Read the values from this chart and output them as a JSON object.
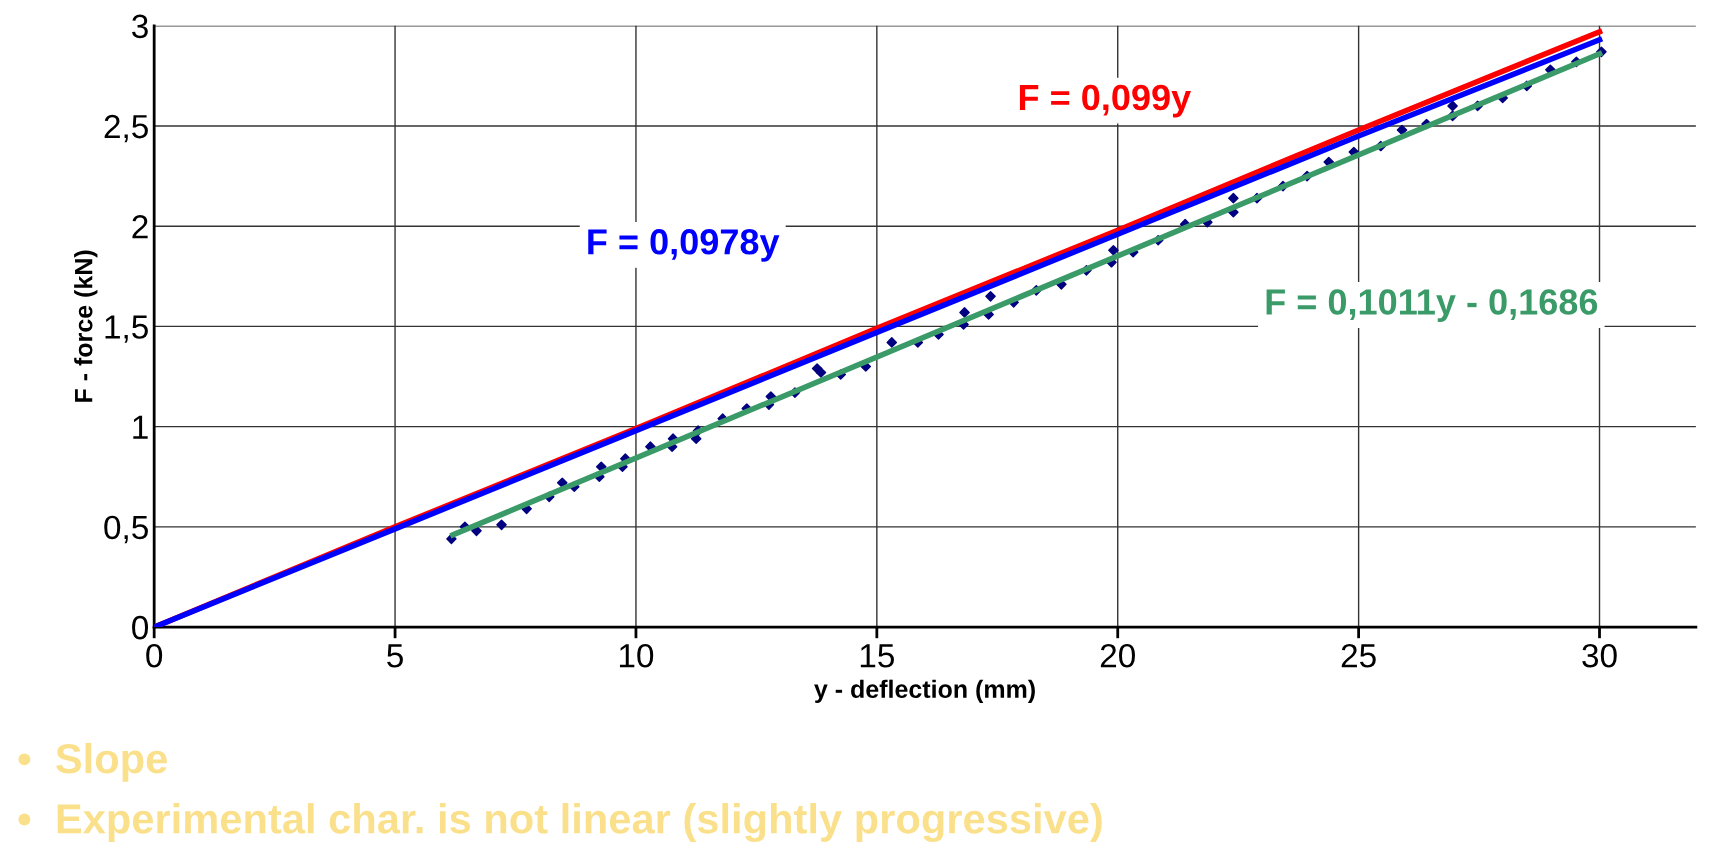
{
  "chart_data": {
    "type": "line",
    "xlabel": "y - deflection (mm)",
    "ylabel": "F - force (kN)",
    "xlim": [
      0,
      32
    ],
    "ylim": [
      0,
      3
    ],
    "xticks": [
      0,
      5,
      10,
      15,
      20,
      25,
      30
    ],
    "yticks": [
      {
        "value": 0,
        "label": "0"
      },
      {
        "value": 0.5,
        "label": "0,5"
      },
      {
        "value": 1,
        "label": "1"
      },
      {
        "value": 1.5,
        "label": "1,5"
      },
      {
        "value": 2,
        "label": "2"
      },
      {
        "value": 2.5,
        "label": "2,5"
      },
      {
        "value": 3,
        "label": "3"
      }
    ],
    "grid": true,
    "legend": false,
    "series": [
      {
        "name": "F = 0,099y",
        "color": "#ff0000",
        "x": [
          0,
          5,
          10,
          15,
          20,
          25,
          30
        ],
        "values": [
          0,
          0.5,
          0.99,
          1.49,
          1.98,
          2.48,
          2.97
        ]
      },
      {
        "name": "F = 0,0978y",
        "color": "#0000ff",
        "x": [
          0,
          5,
          10,
          15,
          20,
          25,
          30
        ],
        "values": [
          0,
          0.49,
          0.98,
          1.47,
          1.96,
          2.45,
          2.93
        ]
      },
      {
        "type": "scatter",
        "marker": "diamond",
        "color": "#000080",
        "x": [
          6.17,
          6.45,
          6.69,
          7.21,
          7.73,
          8.2,
          8.47,
          8.72,
          9.24,
          9.28,
          9.72,
          9.78,
          10.3,
          10.75,
          10.77,
          11.25,
          11.29,
          11.8,
          12.3,
          12.76,
          12.8,
          13.3,
          13.76,
          13.84,
          14.25,
          14.77,
          15.31,
          15.85,
          16.28,
          16.8,
          16.82,
          17.32,
          17.36,
          17.84,
          18.31,
          18.83,
          19.35,
          19.87,
          19.91,
          20.32,
          20.84,
          21.4,
          21.86,
          22.4,
          22.4,
          22.89,
          23.43,
          23.93,
          24.38,
          24.9,
          25.46,
          25.9,
          26.41,
          26.95,
          26.95,
          27.47,
          27.99,
          28.49,
          28.98,
          29.52,
          30.04
        ],
        "values": [
          0.44,
          0.5,
          0.48,
          0.51,
          0.59,
          0.65,
          0.72,
          0.7,
          0.75,
          0.8,
          0.8,
          0.84,
          0.9,
          0.9,
          0.94,
          0.94,
          0.98,
          1.04,
          1.09,
          1.11,
          1.15,
          1.17,
          1.29,
          1.27,
          1.26,
          1.3,
          1.42,
          1.42,
          1.46,
          1.51,
          1.57,
          1.56,
          1.65,
          1.62,
          1.68,
          1.71,
          1.78,
          1.82,
          1.88,
          1.87,
          1.93,
          2.01,
          2.02,
          2.14,
          2.07,
          2.14,
          2.2,
          2.25,
          2.32,
          2.37,
          2.4,
          2.48,
          2.51,
          2.6,
          2.55,
          2.6,
          2.64,
          2.7,
          2.78,
          2.82,
          2.87
        ]
      },
      {
        "name": "F = 0,1011y - 0,1686",
        "color": "#3a9a68",
        "x": [
          6.2,
          30
        ],
        "values": [
          0.46,
          2.86
        ]
      }
    ],
    "annotations": [
      "•  Slope",
      "•  Experimental char. is not linear (slightly progressive)"
    ]
  }
}
